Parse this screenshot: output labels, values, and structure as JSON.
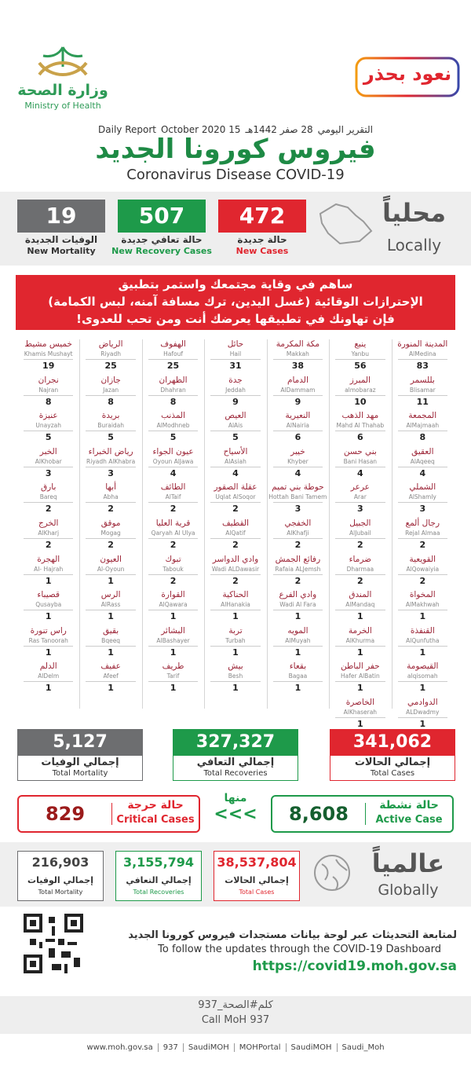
{
  "header": {
    "ministry_ar": "وزارة الصحة",
    "ministry_en": "Ministry of Health",
    "campaign": "نعود بحذر",
    "report_ar": "التقرير اليومي",
    "date_hijri": "28 صفر 1442هـ",
    "date_en": "15 October 2020",
    "report_en": "Daily Report",
    "title_ar": "فيروس كورونا الجديد",
    "title_en": "Coronavirus Disease COVID-19"
  },
  "locally": {
    "label_ar": "محلياً",
    "label_en": "Locally",
    "stats": [
      {
        "value": "472",
        "label_ar": "حالة جديدة",
        "label_en": "New Cases"
      },
      {
        "value": "507",
        "label_ar": "حالة تعافي جديدة",
        "label_en": "New Recovery Cases"
      },
      {
        "value": "19",
        "label_ar": "الوفيات الجديدة",
        "label_en": "New Mortality"
      }
    ]
  },
  "banner": {
    "lines": [
      "ساهم في وقاية مجتمعك واستمر بتطبيق",
      "الإحترازات الوقائية (غسل اليدين، ترك مسافة آمنه، لبس الكمامة)",
      "فإن تهاونك في تطبيقها يعرضك أنت ومن تحب للعدوى!"
    ]
  },
  "cities": {
    "columns": [
      [
        {
          "ar": "المدينة المنورة",
          "en": "AlMedina",
          "count": 83
        },
        {
          "ar": "بللسمر",
          "en": "Blisamar",
          "count": 11
        },
        {
          "ar": "المجمعة",
          "en": "AlMajmaah",
          "count": 8
        },
        {
          "ar": "العقيق",
          "en": "AlAqeeq",
          "count": 4
        },
        {
          "ar": "الشملي",
          "en": "AlShamly",
          "count": 3
        },
        {
          "ar": "رجال ألمع",
          "en": "Rejal Almaa",
          "count": 2
        },
        {
          "ar": "القويعية",
          "en": "AlQowaiyia",
          "count": 2
        },
        {
          "ar": "المخواة",
          "en": "AlMakhwah",
          "count": 1
        },
        {
          "ar": "القنفذة",
          "en": "AlQunfutha",
          "count": 1
        },
        {
          "ar": "القيصومة",
          "en": "alqisomah",
          "count": 1
        },
        {
          "ar": "الدوادمي",
          "en": "ALDwadmy",
          "count": 1
        }
      ],
      [
        {
          "ar": "ينبع",
          "en": "Yanbu",
          "count": 56
        },
        {
          "ar": "المبرز",
          "en": "almobaraz",
          "count": 10
        },
        {
          "ar": "مهد الذهب",
          "en": "Mahd Al Thahab",
          "count": 6
        },
        {
          "ar": "بني حسن",
          "en": "Bani Hasan",
          "count": 4
        },
        {
          "ar": "عرعر",
          "en": "Arar",
          "count": 3
        },
        {
          "ar": "الجبيل",
          "en": "AlJubail",
          "count": 2
        },
        {
          "ar": "ضرماء",
          "en": "Dharmaa",
          "count": 2
        },
        {
          "ar": "المندق",
          "en": "AlMandaq",
          "count": 1
        },
        {
          "ar": "الخرمة",
          "en": "AlKhurma",
          "count": 1
        },
        {
          "ar": "حفر الباطن",
          "en": "Hafer AlBatin",
          "count": 1
        },
        {
          "ar": "الخاصرة",
          "en": "AlKhaserah",
          "count": 1
        }
      ],
      [
        {
          "ar": "مكة المكرمة",
          "en": "Makkah",
          "count": 38
        },
        {
          "ar": "الدمام",
          "en": "AlDammam",
          "count": 9
        },
        {
          "ar": "النعيرية",
          "en": "AlNairia",
          "count": 6
        },
        {
          "ar": "خيبر",
          "en": "Khyber",
          "count": 4
        },
        {
          "ar": "حوطة بني تميم",
          "en": "Hottah Bani Tamem",
          "count": 3
        },
        {
          "ar": "الخفجي",
          "en": "AlKhafji",
          "count": 2
        },
        {
          "ar": "رفائع الجمش",
          "en": "Rafaia ALJemsh",
          "count": 2
        },
        {
          "ar": "وادي الفرع",
          "en": "Wadi Al Fara",
          "count": 1
        },
        {
          "ar": "المويه",
          "en": "AlMuyah",
          "count": 1
        },
        {
          "ar": "بقعاء",
          "en": "Bagaa",
          "count": 1
        }
      ],
      [
        {
          "ar": "حائل",
          "en": "Hail",
          "count": 31
        },
        {
          "ar": "جدة",
          "en": "Jeddah",
          "count": 9
        },
        {
          "ar": "العيص",
          "en": "AlAis",
          "count": 5
        },
        {
          "ar": "الأسياح",
          "en": "AlAsiah",
          "count": 4
        },
        {
          "ar": "عقلة الصقور",
          "en": "Uqlat AlSoqor",
          "count": 2
        },
        {
          "ar": "القطيف",
          "en": "AlQatif",
          "count": 2
        },
        {
          "ar": "وادي الدواسر",
          "en": "Wadi ALDawasir",
          "count": 2
        },
        {
          "ar": "الحناكية",
          "en": "AlHanakia",
          "count": 1
        },
        {
          "ar": "تربة",
          "en": "Turbah",
          "count": 1
        },
        {
          "ar": "بيش",
          "en": "Besh",
          "count": 1
        }
      ],
      [
        {
          "ar": "الهفوف",
          "en": "Hafouf",
          "count": 25
        },
        {
          "ar": "الظهران",
          "en": "Dhahran",
          "count": 8
        },
        {
          "ar": "المذنب",
          "en": "AlModhneb",
          "count": 5
        },
        {
          "ar": "عيون الجواء",
          "en": "Oyoun AlJawa",
          "count": 4
        },
        {
          "ar": "الطائف",
          "en": "AlTaif",
          "count": 2
        },
        {
          "ar": "قرية العليا",
          "en": "Qaryah Al Ulya",
          "count": 2
        },
        {
          "ar": "تبوك",
          "en": "Tabouk",
          "count": 2
        },
        {
          "ar": "القوارة",
          "en": "AlQawara",
          "count": 1
        },
        {
          "ar": "البشائر",
          "en": "AlBashayer",
          "count": 1
        },
        {
          "ar": "طريف",
          "en": "Tarif",
          "count": 1
        }
      ],
      [
        {
          "ar": "الرياض",
          "en": "Riyadh",
          "count": 25
        },
        {
          "ar": "جازان",
          "en": "Jazan",
          "count": 8
        },
        {
          "ar": "بريدة",
          "en": "Buraidah",
          "count": 5
        },
        {
          "ar": "رياض الخبراء",
          "en": "Riyadh AlKhabra",
          "count": 3
        },
        {
          "ar": "أبها",
          "en": "Abha",
          "count": 2
        },
        {
          "ar": "موقق",
          "en": "Mogag",
          "count": 2
        },
        {
          "ar": "العيون",
          "en": "Al-Oyoun",
          "count": 1
        },
        {
          "ar": "الرس",
          "en": "AlRass",
          "count": 1
        },
        {
          "ar": "بقيق",
          "en": "Bqeeq",
          "count": 1
        },
        {
          "ar": "عفيف",
          "en": "Afeef",
          "count": 1
        }
      ],
      [
        {
          "ar": "خميس مشيط",
          "en": "Khamis Mushayt",
          "count": 19
        },
        {
          "ar": "نجران",
          "en": "Najran",
          "count": 8
        },
        {
          "ar": "عنيزة",
          "en": "Unayzah",
          "count": 5
        },
        {
          "ar": "الخبر",
          "en": "AlKhobar",
          "count": 3
        },
        {
          "ar": "بارق",
          "en": "Bareq",
          "count": 2
        },
        {
          "ar": "الخرج",
          "en": "AlKharj",
          "count": 2
        },
        {
          "ar": "الهجرة",
          "en": "Al- Hajrah",
          "count": 1
        },
        {
          "ar": "قصيباء",
          "en": "Qusayba",
          "count": 1
        },
        {
          "ar": "راس تنورة",
          "en": "Ras Tanoorah",
          "count": 1
        },
        {
          "ar": "الدلم",
          "en": "AlDelm",
          "count": 1
        }
      ]
    ]
  },
  "totals": [
    {
      "value": "341,062",
      "label_ar": "إجمالي الحالات",
      "label_en": "Total Cases"
    },
    {
      "value": "327,327",
      "label_ar": "إجمالي التعافي",
      "label_en": "Total Recoveries"
    },
    {
      "value": "5,127",
      "label_ar": "إجمالي الوفيات",
      "label_en": "Total Mortality"
    }
  ],
  "active": {
    "value": "8,608",
    "label_ar": "حالة نشطة",
    "label_en": "Active Case",
    "connector_ar": "منها",
    "arrows": "<<<"
  },
  "critical": {
    "value": "829",
    "label_ar": "حالة حرجة",
    "label_en": "Critical Cases"
  },
  "globally": {
    "label_ar": "عالمياً",
    "label_en": "Globally",
    "stats": [
      {
        "value": "38,537,804",
        "label_ar": "إجمالي الحالات",
        "label_en": "Total Cases"
      },
      {
        "value": "3,155,794",
        "label_ar": "إجمالي التعافي",
        "label_en": "Total Recoveries"
      },
      {
        "value": "216,903",
        "label_ar": "إجمالي الوفيات",
        "label_en": "Total Mortality"
      }
    ]
  },
  "dashboard": {
    "line_ar": "لمتابعة التحديثات عبر لوحة بيانات مستجدات فيروس كورونا الجديد",
    "line_en": "To follow the updates through the COVID-19 Dashboard",
    "url": "https://covid19.moh.gov.sa"
  },
  "call": {
    "ar": "كلم#الصحة_937",
    "en": "Call MoH 937"
  },
  "social": [
    "www.moh.gov.sa",
    "937",
    "SaudiMOH",
    "MOHPortal",
    "SaudiMOH",
    "Saudi_Moh"
  ]
}
